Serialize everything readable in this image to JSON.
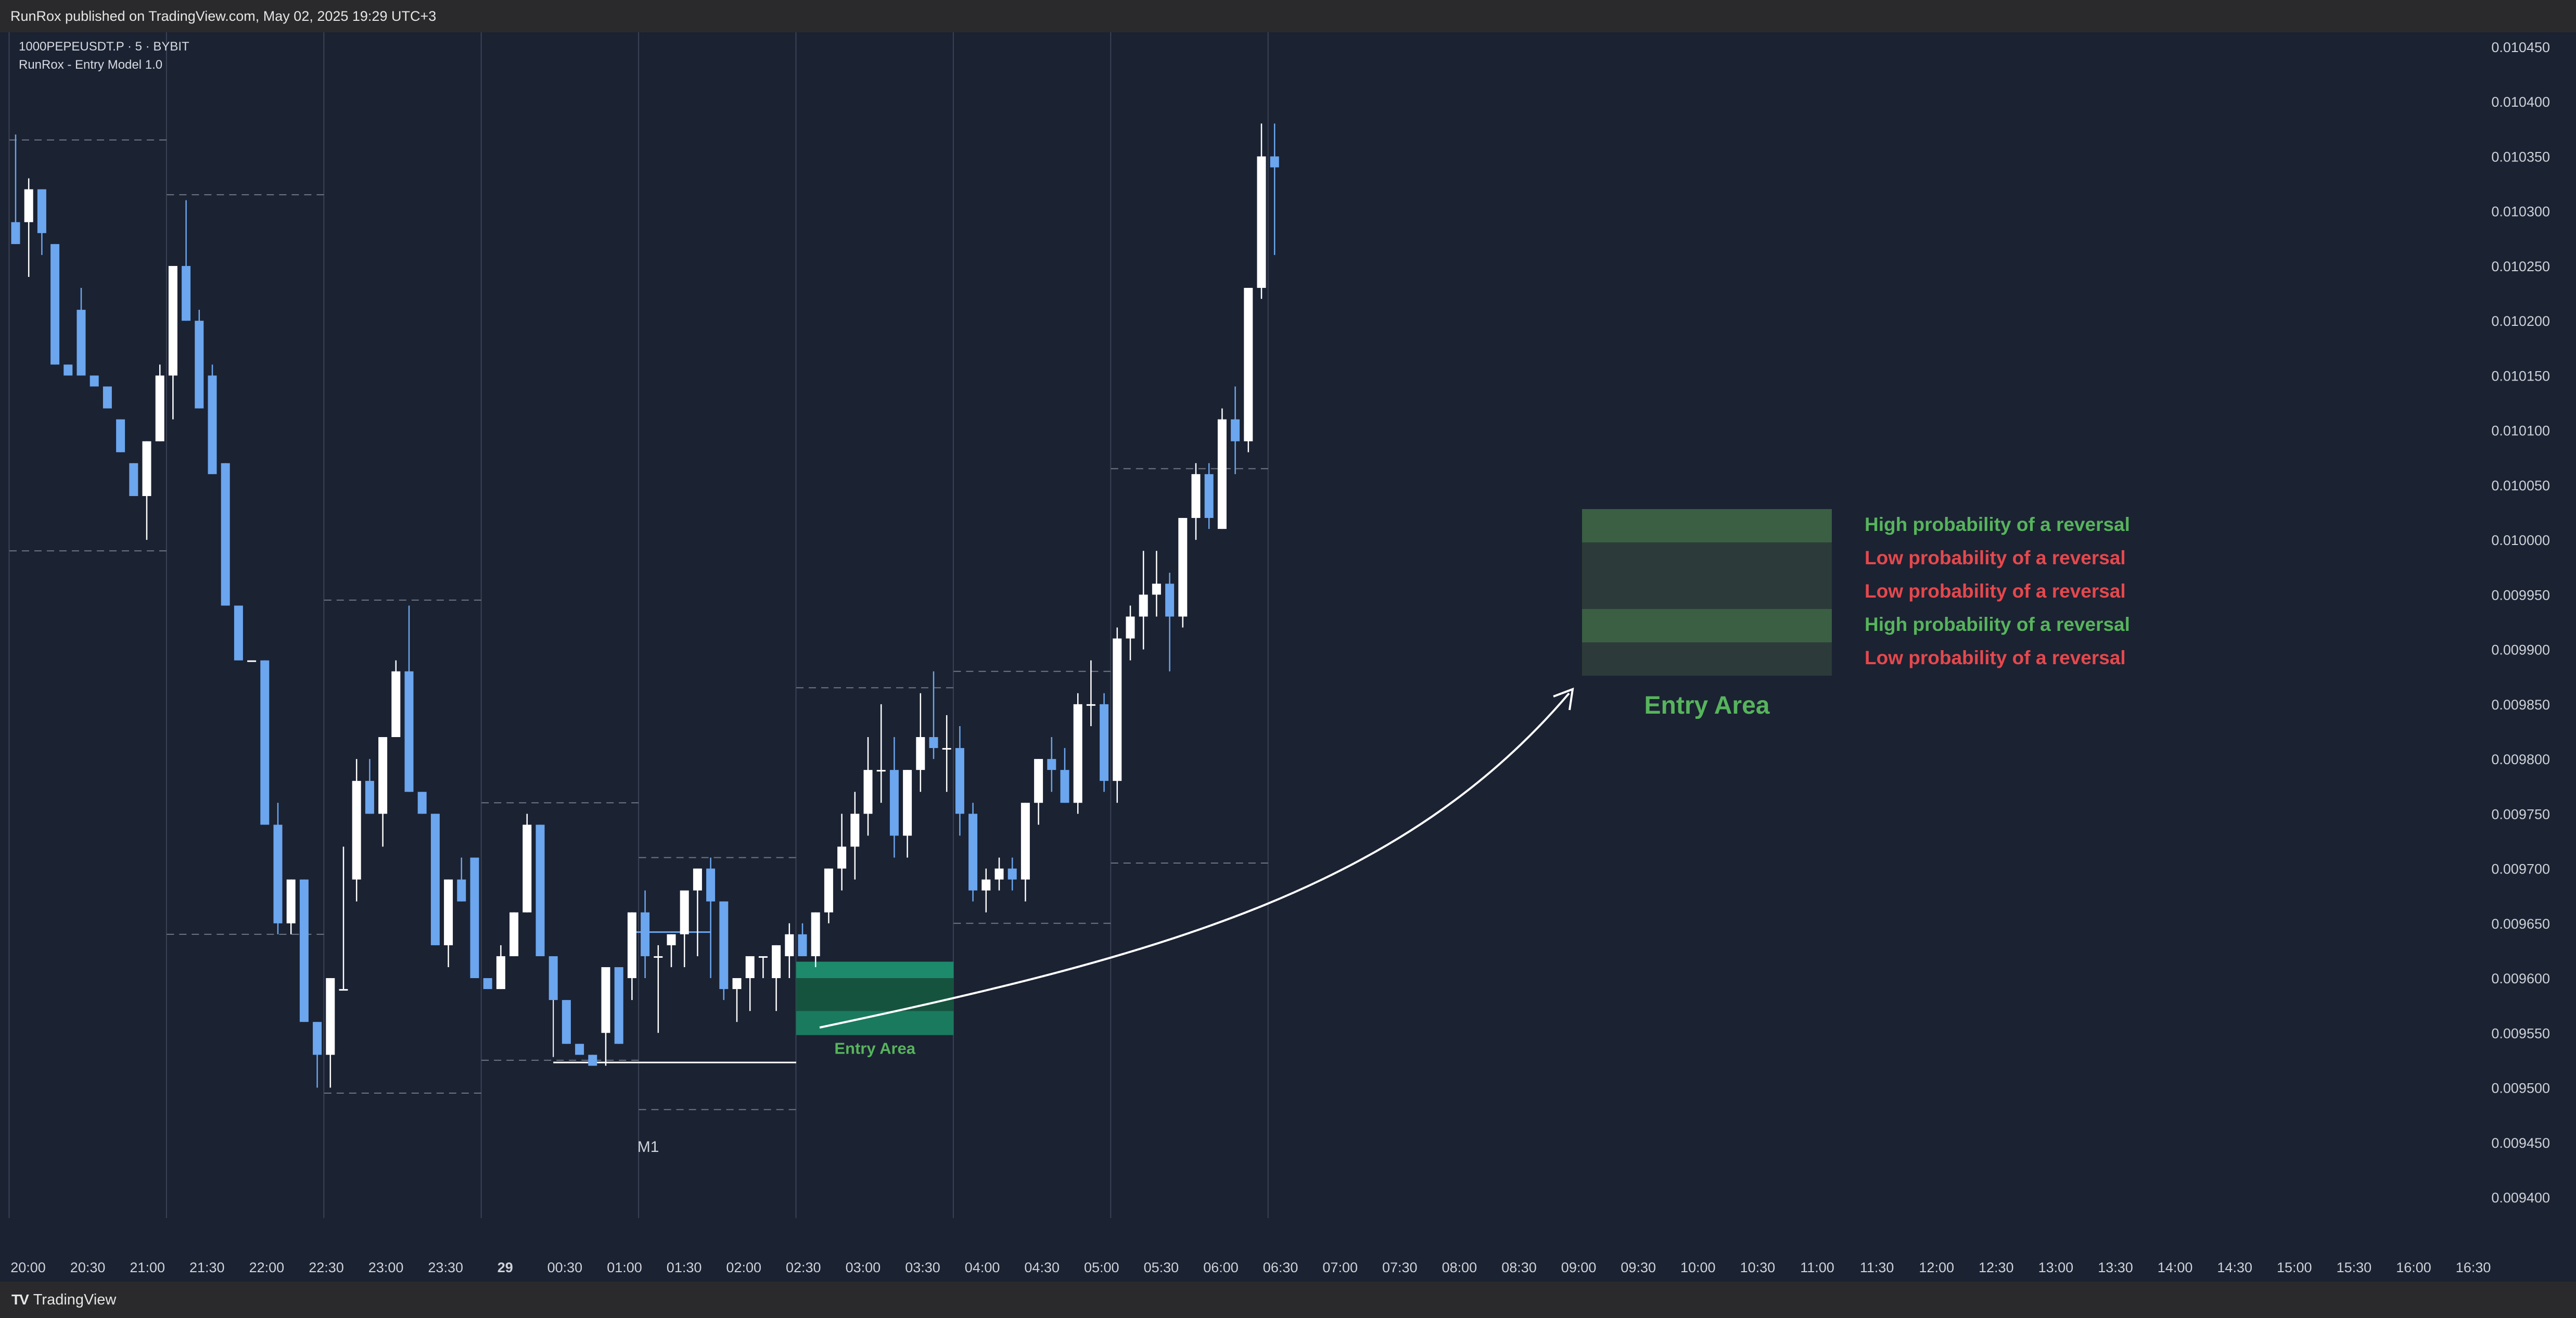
{
  "header": {
    "published": "RunRox published on TradingView.com, May 02, 2025 19:29 UTC+3"
  },
  "legend": {
    "symbol_line": "1000PEPEUSDT.P · 5 · BYBIT",
    "indicator_line": "RunRox - Entry Model 1.0"
  },
  "footer": {
    "logo_glyph": "TV",
    "brand": "TradingView"
  },
  "annotations": {
    "m1_label": "M1",
    "entry_area_small": "Entry Area",
    "entry_area_big": "Entry Area",
    "zone_labels": [
      {
        "text": "High probability of a reversal",
        "color": "#57b45c"
      },
      {
        "text": "Low probability of a reversal",
        "color": "#e5484d"
      },
      {
        "text": "Low probability of a reversal",
        "color": "#e5484d"
      },
      {
        "text": "High probability of a reversal",
        "color": "#57b45c"
      },
      {
        "text": "Low probability of a reversal",
        "color": "#e5484d"
      }
    ]
  },
  "colors": {
    "background": "#1b2232",
    "bull_candle": "#ffffff",
    "bear_candle": "#6ba6ee",
    "grid_line": "#3a4254",
    "dashed_level": "#6f7583",
    "zone_high": "#3a5f43",
    "zone_low": "#2c3b3a",
    "entry_zone_teal": "#17725a",
    "axis_text": "#cfd2d8"
  },
  "chart_data": {
    "type": "candlestick",
    "symbol": "1000PEPEUSDT.P",
    "interval": "5",
    "exchange": "BYBIT",
    "ylim": [
      0.009365,
      0.01046
    ],
    "y_ticks": [
      "0.010450",
      "0.010400",
      "0.010350",
      "0.010300",
      "0.010250",
      "0.010200",
      "0.010150",
      "0.010100",
      "0.010050",
      "0.010000",
      "0.009950",
      "0.009900",
      "0.009850",
      "0.009800",
      "0.009750",
      "0.009700",
      "0.009650",
      "0.009600",
      "0.009550",
      "0.009500",
      "0.009450",
      "0.009400"
    ],
    "x_ticks": [
      "20:00",
      "20:30",
      "21:00",
      "21:30",
      "22:00",
      "22:30",
      "23:00",
      "23:30",
      "29",
      "00:30",
      "01:00",
      "01:30",
      "02:00",
      "02:30",
      "03:00",
      "03:30",
      "04:00",
      "04:30",
      "05:00",
      "05:30",
      "06:00",
      "06:30",
      "07:00",
      "07:30",
      "08:00",
      "08:30",
      "09:00",
      "09:30",
      "10:00",
      "10:30",
      "11:00",
      "11:30",
      "12:00",
      "12:30",
      "13:00",
      "13:30",
      "14:00",
      "14:30",
      "15:00",
      "15:30",
      "16:00",
      "16:30"
    ],
    "start_time": "20:00",
    "bar_minutes": 5,
    "candles": [
      {
        "o": 0.01029,
        "h": 0.01037,
        "l": 0.01027,
        "c": 0.01027
      },
      {
        "o": 0.01029,
        "h": 0.01033,
        "l": 0.01024,
        "c": 0.01032
      },
      {
        "o": 0.01032,
        "h": 0.01032,
        "l": 0.01026,
        "c": 0.01028
      },
      {
        "o": 0.01027,
        "h": 0.01027,
        "l": 0.01016,
        "c": 0.01016
      },
      {
        "o": 0.01016,
        "h": 0.01016,
        "l": 0.01015,
        "c": 0.01015
      },
      {
        "o": 0.01021,
        "h": 0.01023,
        "l": 0.01015,
        "c": 0.01015
      },
      {
        "o": 0.01015,
        "h": 0.01015,
        "l": 0.01014,
        "c": 0.01014
      },
      {
        "o": 0.01014,
        "h": 0.01014,
        "l": 0.01012,
        "c": 0.01012
      },
      {
        "o": 0.01011,
        "h": 0.01011,
        "l": 0.01008,
        "c": 0.01008
      },
      {
        "o": 0.01007,
        "h": 0.01007,
        "l": 0.01004,
        "c": 0.01004
      },
      {
        "o": 0.01004,
        "h": 0.01009,
        "l": 0.01,
        "c": 0.01009
      },
      {
        "o": 0.01009,
        "h": 0.01016,
        "l": 0.01009,
        "c": 0.01015
      },
      {
        "o": 0.01015,
        "h": 0.01025,
        "l": 0.01011,
        "c": 0.01025
      },
      {
        "o": 0.01025,
        "h": 0.01031,
        "l": 0.0102,
        "c": 0.0102
      },
      {
        "o": 0.0102,
        "h": 0.01021,
        "l": 0.01012,
        "c": 0.01012
      },
      {
        "o": 0.01015,
        "h": 0.01016,
        "l": 0.01006,
        "c": 0.01006
      },
      {
        "o": 0.01007,
        "h": 0.01007,
        "l": 0.00994,
        "c": 0.00994
      },
      {
        "o": 0.00994,
        "h": 0.00994,
        "l": 0.00989,
        "c": 0.00989
      },
      {
        "o": 0.00989,
        "h": 0.00989,
        "l": 0.00989,
        "c": 0.00989
      },
      {
        "o": 0.00989,
        "h": 0.00989,
        "l": 0.00974,
        "c": 0.00974
      },
      {
        "o": 0.00974,
        "h": 0.00976,
        "l": 0.00964,
        "c": 0.00965
      },
      {
        "o": 0.00965,
        "h": 0.00969,
        "l": 0.00964,
        "c": 0.00969
      },
      {
        "o": 0.00969,
        "h": 0.00969,
        "l": 0.00956,
        "c": 0.00956
      },
      {
        "o": 0.00956,
        "h": 0.00956,
        "l": 0.0095,
        "c": 0.00953
      },
      {
        "o": 0.00953,
        "h": 0.0096,
        "l": 0.0095,
        "c": 0.0096
      },
      {
        "o": 0.00959,
        "h": 0.00972,
        "l": 0.00959,
        "c": 0.00959
      },
      {
        "o": 0.00969,
        "h": 0.0098,
        "l": 0.00967,
        "c": 0.00978
      },
      {
        "o": 0.00978,
        "h": 0.0098,
        "l": 0.00975,
        "c": 0.00975
      },
      {
        "o": 0.00975,
        "h": 0.00982,
        "l": 0.00972,
        "c": 0.00982
      },
      {
        "o": 0.00982,
        "h": 0.00989,
        "l": 0.00982,
        "c": 0.00988
      },
      {
        "o": 0.00988,
        "h": 0.00994,
        "l": 0.00977,
        "c": 0.00977
      },
      {
        "o": 0.00977,
        "h": 0.00977,
        "l": 0.00975,
        "c": 0.00975
      },
      {
        "o": 0.00975,
        "h": 0.00975,
        "l": 0.00963,
        "c": 0.00963
      },
      {
        "o": 0.00963,
        "h": 0.00969,
        "l": 0.00961,
        "c": 0.00969
      },
      {
        "o": 0.00969,
        "h": 0.00971,
        "l": 0.00967,
        "c": 0.00967
      },
      {
        "o": 0.00971,
        "h": 0.00971,
        "l": 0.0096,
        "c": 0.0096
      },
      {
        "o": 0.0096,
        "h": 0.0096,
        "l": 0.00959,
        "c": 0.00959
      },
      {
        "o": 0.00959,
        "h": 0.00963,
        "l": 0.00959,
        "c": 0.00962
      },
      {
        "o": 0.00962,
        "h": 0.00966,
        "l": 0.00962,
        "c": 0.00966
      },
      {
        "o": 0.00966,
        "h": 0.00975,
        "l": 0.00966,
        "c": 0.00974
      },
      {
        "o": 0.00974,
        "h": 0.00974,
        "l": 0.00962,
        "c": 0.00962
      },
      {
        "o": 0.00962,
        "h": 0.00962,
        "l": 0.00958,
        "c": 0.00958
      },
      {
        "o": 0.00958,
        "h": 0.00958,
        "l": 0.00954,
        "c": 0.00954
      },
      {
        "o": 0.00954,
        "h": 0.00954,
        "l": 0.00953,
        "c": 0.00953
      },
      {
        "o": 0.00953,
        "h": 0.00953,
        "l": 0.00952,
        "c": 0.00952
      },
      {
        "o": 0.00955,
        "h": 0.00961,
        "l": 0.00952,
        "c": 0.00961
      },
      {
        "o": 0.00961,
        "h": 0.00961,
        "l": 0.00954,
        "c": 0.00954
      },
      {
        "o": 0.0096,
        "h": 0.00966,
        "l": 0.00958,
        "c": 0.00966
      },
      {
        "o": 0.00966,
        "h": 0.00968,
        "l": 0.0096,
        "c": 0.00962
      },
      {
        "o": 0.00962,
        "h": 0.00963,
        "l": 0.00955,
        "c": 0.00962
      },
      {
        "o": 0.00963,
        "h": 0.00964,
        "l": 0.00961,
        "c": 0.00964
      },
      {
        "o": 0.00964,
        "h": 0.00967,
        "l": 0.00961,
        "c": 0.00968
      },
      {
        "o": 0.00968,
        "h": 0.0097,
        "l": 0.00962,
        "c": 0.0097
      },
      {
        "o": 0.0097,
        "h": 0.00971,
        "l": 0.0096,
        "c": 0.00967
      },
      {
        "o": 0.00967,
        "h": 0.00967,
        "l": 0.00958,
        "c": 0.00959
      },
      {
        "o": 0.00959,
        "h": 0.00959,
        "l": 0.00956,
        "c": 0.0096
      },
      {
        "o": 0.0096,
        "h": 0.00962,
        "l": 0.00957,
        "c": 0.00962
      },
      {
        "o": 0.00962,
        "h": 0.00962,
        "l": 0.0096,
        "c": 0.00962
      },
      {
        "o": 0.0096,
        "h": 0.00963,
        "l": 0.00957,
        "c": 0.00963
      },
      {
        "o": 0.00962,
        "h": 0.00965,
        "l": 0.0096,
        "c": 0.00964
      },
      {
        "o": 0.00964,
        "h": 0.00965,
        "l": 0.00962,
        "c": 0.00962
      },
      {
        "o": 0.00962,
        "h": 0.00966,
        "l": 0.00961,
        "c": 0.00966
      },
      {
        "o": 0.00966,
        "h": 0.0097,
        "l": 0.00965,
        "c": 0.0097
      },
      {
        "o": 0.0097,
        "h": 0.00975,
        "l": 0.00968,
        "c": 0.00972
      },
      {
        "o": 0.00972,
        "h": 0.00977,
        "l": 0.00969,
        "c": 0.00975
      },
      {
        "o": 0.00975,
        "h": 0.00982,
        "l": 0.00973,
        "c": 0.00979
      },
      {
        "o": 0.00979,
        "h": 0.00985,
        "l": 0.00976,
        "c": 0.00979
      },
      {
        "o": 0.00979,
        "h": 0.00982,
        "l": 0.00971,
        "c": 0.00973
      },
      {
        "o": 0.00973,
        "h": 0.00979,
        "l": 0.00971,
        "c": 0.00979
      },
      {
        "o": 0.00979,
        "h": 0.00986,
        "l": 0.00977,
        "c": 0.00982
      },
      {
        "o": 0.00982,
        "h": 0.00988,
        "l": 0.0098,
        "c": 0.00981
      },
      {
        "o": 0.00981,
        "h": 0.00984,
        "l": 0.00977,
        "c": 0.00981
      },
      {
        "o": 0.00981,
        "h": 0.00983,
        "l": 0.00973,
        "c": 0.00975
      },
      {
        "o": 0.00975,
        "h": 0.00976,
        "l": 0.00967,
        "c": 0.00968
      },
      {
        "o": 0.00968,
        "h": 0.0097,
        "l": 0.00966,
        "c": 0.00969
      },
      {
        "o": 0.00969,
        "h": 0.00971,
        "l": 0.00968,
        "c": 0.0097
      },
      {
        "o": 0.0097,
        "h": 0.00971,
        "l": 0.00968,
        "c": 0.00969
      },
      {
        "o": 0.00969,
        "h": 0.00976,
        "l": 0.00967,
        "c": 0.00976
      },
      {
        "o": 0.00976,
        "h": 0.0098,
        "l": 0.00974,
        "c": 0.0098
      },
      {
        "o": 0.0098,
        "h": 0.00982,
        "l": 0.00977,
        "c": 0.00979
      },
      {
        "o": 0.00979,
        "h": 0.00981,
        "l": 0.00976,
        "c": 0.00976
      },
      {
        "o": 0.00976,
        "h": 0.00986,
        "l": 0.00975,
        "c": 0.00985
      },
      {
        "o": 0.00985,
        "h": 0.00989,
        "l": 0.00983,
        "c": 0.00985
      },
      {
        "o": 0.00985,
        "h": 0.00986,
        "l": 0.00977,
        "c": 0.00978
      },
      {
        "o": 0.00978,
        "h": 0.00992,
        "l": 0.00976,
        "c": 0.00991
      },
      {
        "o": 0.00991,
        "h": 0.00994,
        "l": 0.00989,
        "c": 0.00993
      },
      {
        "o": 0.00993,
        "h": 0.00999,
        "l": 0.0099,
        "c": 0.00995
      },
      {
        "o": 0.00995,
        "h": 0.00999,
        "l": 0.00993,
        "c": 0.00996
      },
      {
        "o": 0.00996,
        "h": 0.00997,
        "l": 0.00988,
        "c": 0.00993
      },
      {
        "o": 0.00993,
        "h": 0.01002,
        "l": 0.00992,
        "c": 0.01002
      },
      {
        "o": 0.01002,
        "h": 0.01007,
        "l": 0.01,
        "c": 0.01006
      },
      {
        "o": 0.01006,
        "h": 0.01007,
        "l": 0.01001,
        "c": 0.01002
      },
      {
        "o": 0.01001,
        "h": 0.01012,
        "l": 0.01001,
        "c": 0.01011
      },
      {
        "o": 0.01011,
        "h": 0.01014,
        "l": 0.01006,
        "c": 0.01009
      },
      {
        "o": 0.01009,
        "h": 0.01023,
        "l": 0.01008,
        "c": 0.01023
      },
      {
        "o": 0.01023,
        "h": 0.01038,
        "l": 0.01022,
        "c": 0.01035
      },
      {
        "o": 0.01035,
        "h": 0.01038,
        "l": 0.01026,
        "c": 0.01034
      }
    ]
  }
}
